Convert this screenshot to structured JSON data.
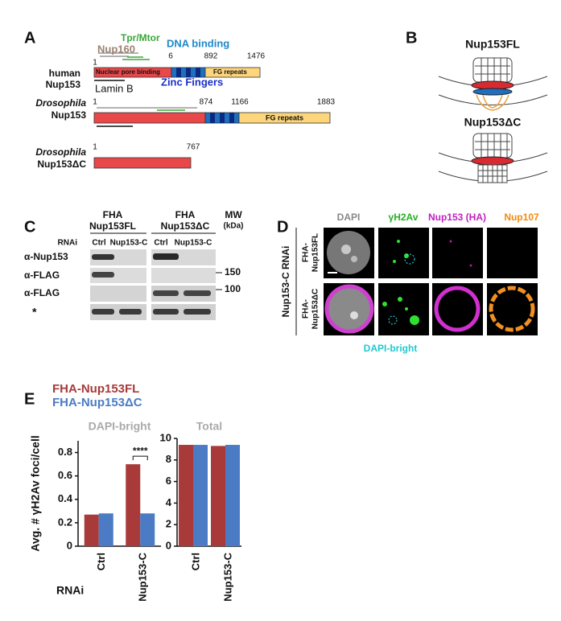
{
  "panel_a": {
    "label": "A",
    "human": {
      "name": [
        "human",
        "Nup153"
      ],
      "positions": [
        1,
        6,
        892,
        1476
      ],
      "domains": [
        "Nuclear pore binding",
        "FG repeats"
      ],
      "binders": [
        "Tpr/Mtor",
        "Nup160",
        "DNA binding",
        "Lamin B",
        "Zinc Fingers"
      ]
    },
    "drosophila": {
      "name": [
        "Drosophila",
        "Nup153"
      ],
      "positions": [
        1,
        874,
        1166,
        1883
      ],
      "domains": [
        "FG repeats"
      ]
    },
    "truncated": {
      "name": [
        "Drosophila",
        "Nup153ΔC"
      ],
      "positions": [
        1,
        767
      ]
    }
  },
  "panel_b": {
    "label": "B",
    "titles": [
      "Nup153FL",
      "Nup153ΔC"
    ]
  },
  "panel_c": {
    "label": "C",
    "groups": [
      {
        "name": [
          "FHA",
          "Nup153FL"
        ],
        "lanes": [
          "Ctrl",
          "Nup153-C"
        ]
      },
      {
        "name": [
          "FHA",
          "Nup153ΔC"
        ],
        "lanes": [
          "Ctrl",
          "Nup153-C"
        ]
      }
    ],
    "mw_label": [
      "MW",
      "(kDa)"
    ],
    "rnai": "RNAi",
    "rows": [
      "α-Nup153",
      "α-FLAG",
      "α-FLAG",
      "*"
    ],
    "markers": [
      150,
      100
    ]
  },
  "panel_d": {
    "label": "D",
    "channels": [
      "DAPI",
      "γH2Av",
      "Nup153 (HA)",
      "Nup107"
    ],
    "side_label": "Nup153-C RNAi",
    "rows": [
      [
        "FHA-",
        "Nup153FL"
      ],
      [
        "FHA-",
        "Nup153ΔC"
      ]
    ],
    "footnote": "DAPI-bright"
  },
  "panel_e": {
    "label": "E",
    "rnai": "RNAi"
  },
  "chart_data": [
    {
      "type": "bar",
      "title": "DAPI-bright",
      "ylabel": "Avg. # γH2Av foci/cell",
      "categories": [
        "Ctrl",
        "Nup153-C"
      ],
      "series": [
        {
          "name": "FHA-Nup153FL",
          "color": "#a83a3a",
          "values": [
            0.27,
            0.7
          ]
        },
        {
          "name": "FHA-Nup153ΔC",
          "color": "#4a7bc4",
          "values": [
            0.28,
            0.28
          ]
        }
      ],
      "ylim": [
        0,
        0.9
      ],
      "yticks": [
        0,
        0.2,
        0.4,
        0.6,
        0.8
      ],
      "annotations": [
        "****"
      ]
    },
    {
      "type": "bar",
      "title": "Total",
      "categories": [
        "Ctrl",
        "Nup153-C"
      ],
      "series": [
        {
          "color": "#a83a3a",
          "values": [
            9.4,
            9.3
          ]
        },
        {
          "color": "#4a7bc4",
          "values": [
            9.4,
            9.4
          ]
        }
      ],
      "ylim": [
        0,
        10
      ],
      "yticks": [
        0,
        2,
        4,
        6,
        8,
        10
      ]
    }
  ]
}
